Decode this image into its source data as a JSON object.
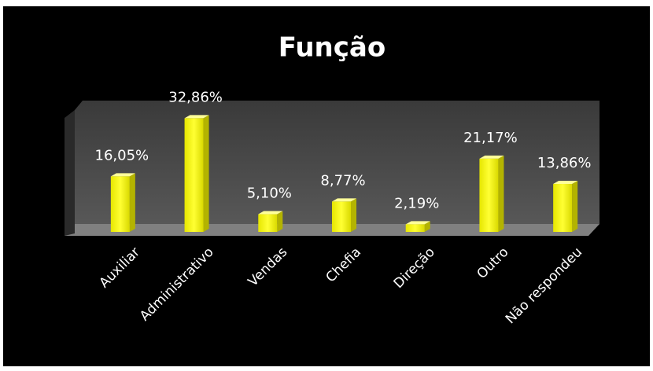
{
  "chart_data": {
    "type": "bar",
    "title": "Função",
    "categories": [
      "Auxiliar",
      "Administrativo",
      "Vendas",
      "Chefia",
      "Direção",
      "Outro",
      "Não respondeu"
    ],
    "values": [
      16.05,
      32.86,
      5.1,
      8.77,
      2.19,
      21.17,
      13.86
    ],
    "value_labels": [
      "16,05%",
      "32,86%",
      "5,10%",
      "8,77%",
      "2,19%",
      "21,17%",
      "13,86%"
    ],
    "color": "#ffff00",
    "ylim": [
      0,
      35
    ]
  }
}
